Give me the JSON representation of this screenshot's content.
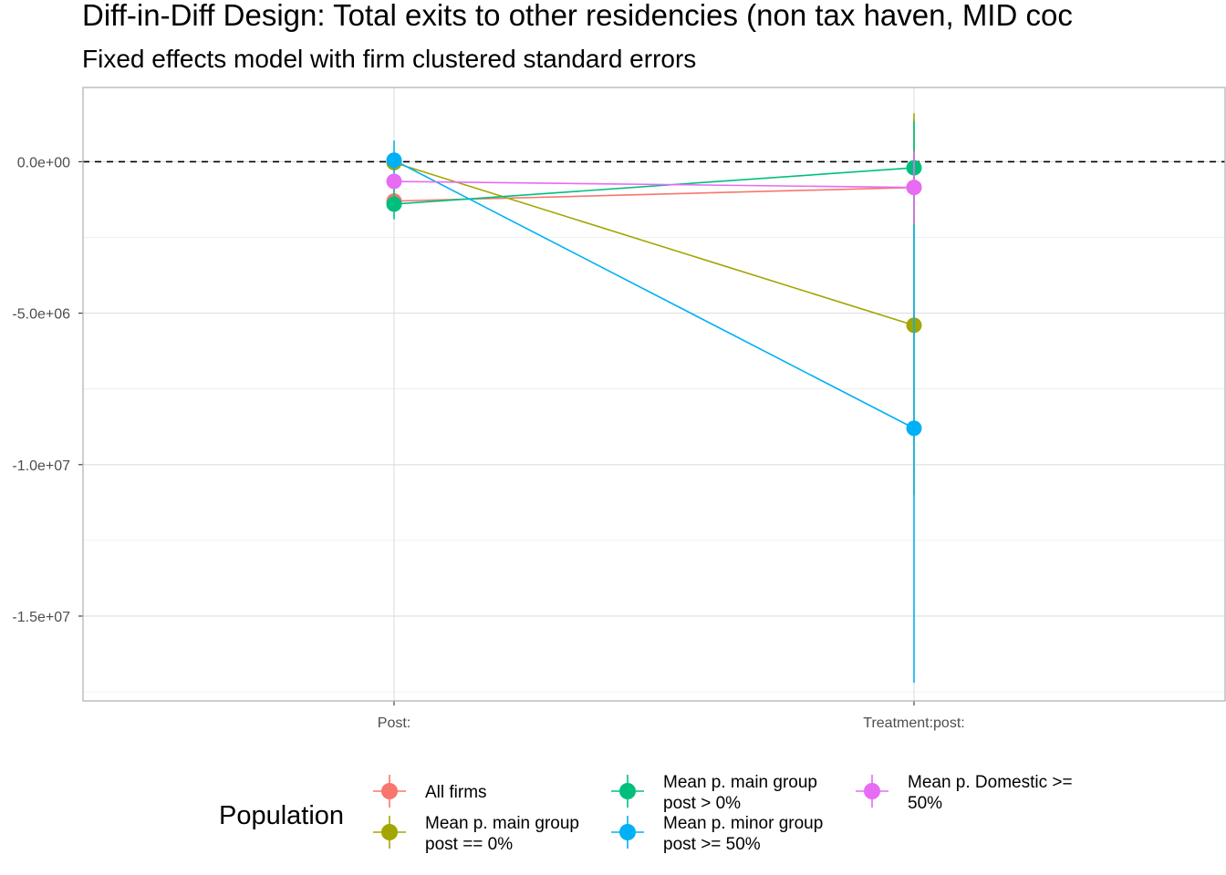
{
  "chart_data": {
    "type": "line",
    "title": "Diff-in-Diff Design: Total exits to other residencies (non tax haven, MID coc",
    "subtitle": "Fixed effects model with firm clustered standard errors",
    "xlabel": "",
    "ylabel": "",
    "categories": [
      "Post:",
      "Treatment:post:"
    ],
    "ylim": [
      -17800000,
      2450000
    ],
    "y_ticks": [
      {
        "value": 0,
        "label": "0.0e+00"
      },
      {
        "value": -5000000,
        "label": "-5.0e+06"
      },
      {
        "value": -10000000,
        "label": "-1.0e+07"
      },
      {
        "value": -15000000,
        "label": "-1.5e+07"
      }
    ],
    "y_minor_gridlines": [
      -2500000,
      -7500000,
      -12500000,
      -17500000
    ],
    "reference_line": {
      "value": 0,
      "style": "dashed"
    },
    "grid": true,
    "legend": {
      "title": "Population",
      "position": "bottom"
    },
    "series": [
      {
        "name": "All firms",
        "color": "#F8766D",
        "values": [
          -1300000,
          -850000
        ],
        "ci_low": [
          -1650000,
          -2050000
        ],
        "ci_high": [
          -950000,
          350000
        ]
      },
      {
        "name": "Mean p. main group post == 0%",
        "color": "#A3A500",
        "values": [
          -30000,
          -5400000
        ],
        "ci_low": [
          -200000,
          -11000000
        ],
        "ci_high": [
          150000,
          1600000
        ]
      },
      {
        "name": "Mean p. main group post > 0%",
        "color": "#00BF7D",
        "values": [
          -1400000,
          -200000
        ],
        "ci_low": [
          -1900000,
          -2100000
        ],
        "ci_high": [
          -900000,
          1350000
        ]
      },
      {
        "name": "Mean p. minor group post >= 50%",
        "color": "#00B0F6",
        "values": [
          50000,
          -8800000
        ],
        "ci_low": [
          -500000,
          -17200000
        ],
        "ci_high": [
          700000,
          -2100000
        ]
      },
      {
        "name": "Mean p. Domestic >= 50%",
        "color": "#E76BF3",
        "values": [
          -650000,
          -850000
        ],
        "ci_low": [
          -750000,
          -2050000
        ],
        "ci_high": [
          -550000,
          350000
        ]
      }
    ],
    "legend_entries": [
      {
        "lines": [
          "All firms"
        ],
        "color": "#F8766D"
      },
      {
        "lines": [
          "Mean p. main group",
          "post == 0%"
        ],
        "color": "#A3A500"
      },
      {
        "lines": [
          "Mean p. main group",
          "post > 0%"
        ],
        "color": "#00BF7D"
      },
      {
        "lines": [
          "Mean p. minor group",
          "post >= 50%"
        ],
        "color": "#00B0F6"
      },
      {
        "lines": [
          "Mean p. Domestic >=",
          "50%"
        ],
        "color": "#E76BF3"
      }
    ]
  }
}
